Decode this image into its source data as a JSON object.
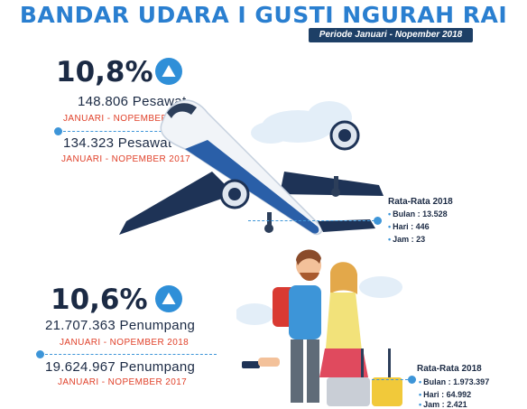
{
  "header": {
    "title": "BANDAR UDARA I GUSTI NGURAH RAI",
    "period": "Periode Januari - Nopember 2018"
  },
  "aircraft": {
    "growth": "10,8%",
    "current_count": "148.806 Pesawat",
    "current_period": "JANUARI - NOPEMBER 2018",
    "previous_count": "134.323 Pesawat",
    "previous_period": "JANUARI - NOPEMBER  2017",
    "average": {
      "title": "Rata-Rata 2018",
      "month": "Bulan : 13.528",
      "day": "Hari : 446",
      "hour": "Jam : 23"
    }
  },
  "passengers": {
    "growth": "10,6%",
    "current_count": "21.707.363 Penumpang",
    "current_period": "JANUARI - NOPEMBER  2018",
    "previous_count": "19.624.967 Penumpang",
    "previous_period": "JANUARI - NOPEMBER  2017",
    "average": {
      "title": "Rata-Rata 2018",
      "month": "Bulan : 1.973.397",
      "day": "Hari : 64.992",
      "hour": "Jam : 2.421"
    }
  },
  "colors": {
    "accent_blue": "#2a7fd0",
    "dark_navy": "#1d3f66",
    "period_red": "#e0412a"
  }
}
